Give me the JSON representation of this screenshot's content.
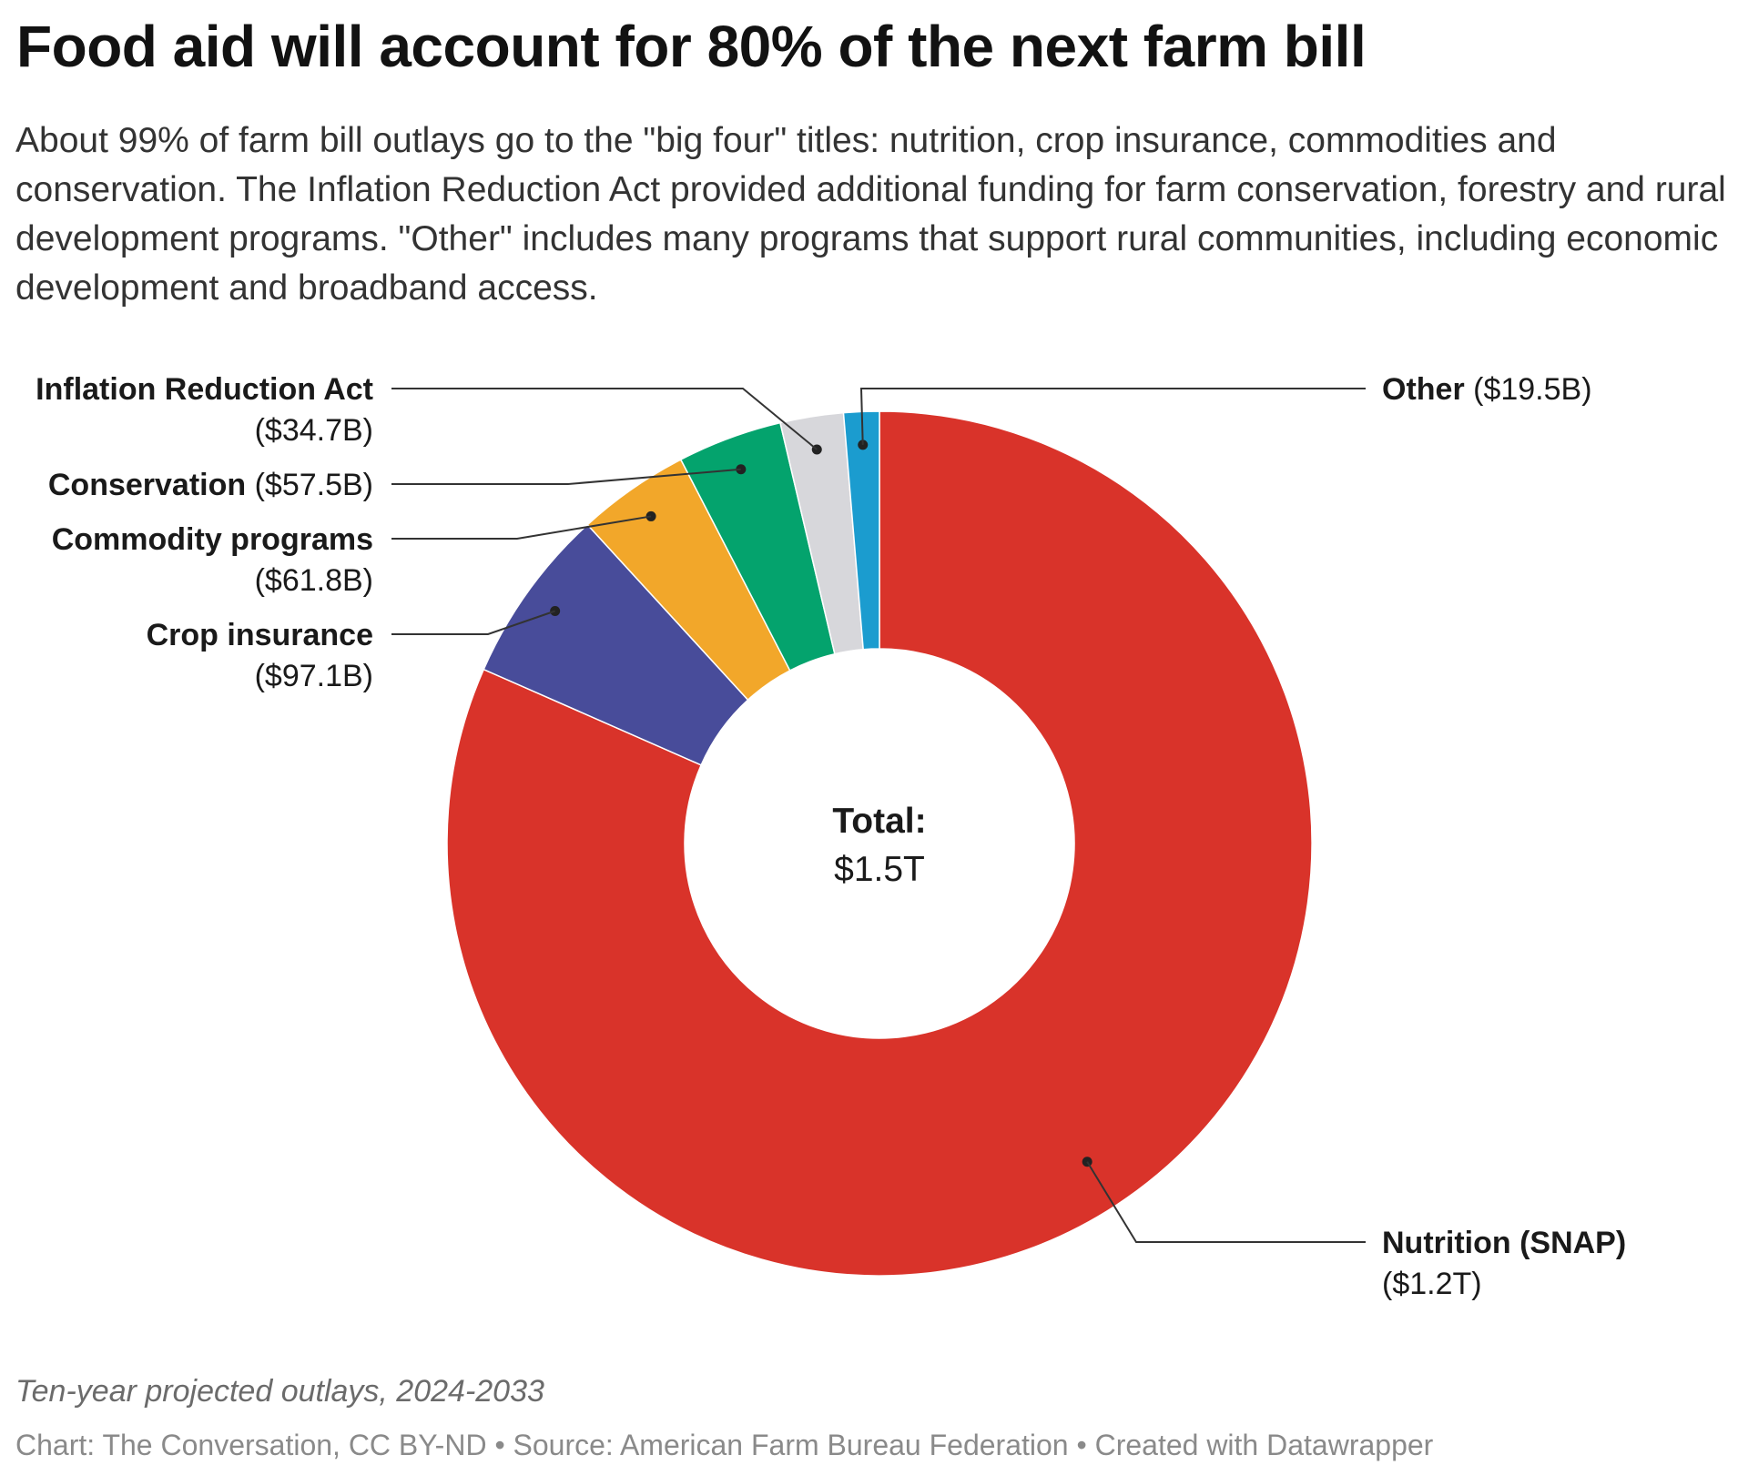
{
  "headline": "Food aid will account for 80% of the next farm bill",
  "description": "About 99% of farm bill outlays go to the \"big four\" titles: nutrition, crop insurance, commodities and conservation. The Inflation Reduction Act provided additional funding for farm conservation, forestry and rural development programs. \"Other\" includes many programs that support rural communities, including economic development and broadband access.",
  "notes": "Ten-year projected outlays, 2024-2033",
  "byline": "Chart: The Conversation, CC BY-ND • Source: American Farm Bureau Federation • Created with Datawrapper",
  "chart_data": {
    "type": "pie",
    "variant": "donut",
    "unit": "billion USD",
    "center_label": "Total:",
    "center_value": "$1.5T",
    "slices": [
      {
        "name": "Nutrition (SNAP)",
        "value_label": "($1.2T)",
        "value": 1200,
        "color": "#d9332a"
      },
      {
        "name": "Crop insurance",
        "value_label": "($97.1B)",
        "value": 97.1,
        "color": "#484c9a"
      },
      {
        "name": "Commodity programs",
        "value_label": "($61.8B)",
        "value": 61.8,
        "color": "#f2a72a"
      },
      {
        "name": "Conservation",
        "value_label": "($57.5B)",
        "value": 57.5,
        "color": "#04a36d"
      },
      {
        "name": "Inflation Reduction Act",
        "value_label": "($34.7B)",
        "value": 34.7,
        "color": "#d7d7db"
      },
      {
        "name": "Other",
        "value_label": "($19.5B)",
        "value": 19.5,
        "color": "#1b9ccf"
      }
    ]
  }
}
